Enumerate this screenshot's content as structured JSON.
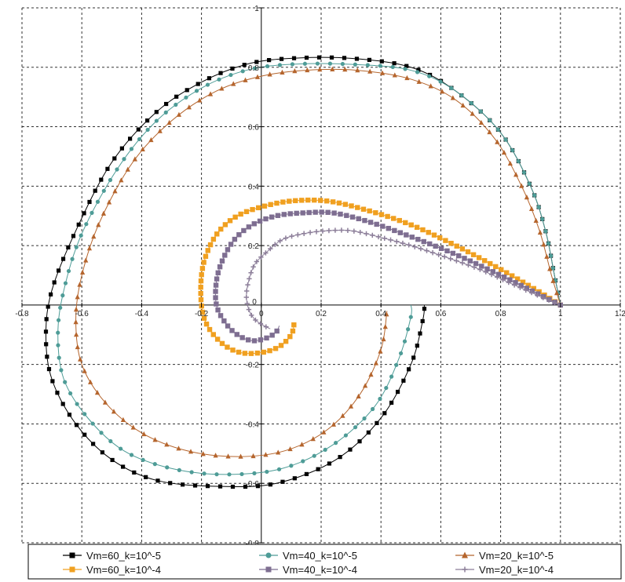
{
  "chart_data": {
    "type": "line",
    "title": "",
    "xlabel": "",
    "ylabel": "",
    "xlim": [
      -0.8,
      1.2
    ],
    "ylim": [
      -0.8,
      1.0
    ],
    "x_ticks": [
      -0.8,
      -0.6,
      -0.4,
      -0.2,
      0,
      0.2,
      0.4,
      0.6,
      0.8,
      1,
      1.2
    ],
    "x_tick_labels": [
      "-0.8",
      "-0.6",
      "-0.4",
      "-0.2",
      "0",
      "0.2",
      "0.4",
      "0.6",
      "0.8",
      "1",
      "1.2"
    ],
    "y_ticks": [
      1,
      0.8,
      0.6,
      0.4,
      0.2,
      0,
      -0.2,
      -0.4,
      -0.6,
      -0.8
    ],
    "y_tick_labels": [
      "1",
      "0.8",
      "0.6",
      "0.4",
      "0.2",
      "0",
      "-0.2",
      "-0.4",
      "-0.6",
      "-0.8"
    ],
    "grid": true,
    "legend_position": "bottom",
    "series": [
      {
        "name": "Vm=60_k=10^-5",
        "color": "#000000",
        "marker": "square",
        "x": [
          1.0,
          0.98,
          0.95,
          0.9,
          0.8,
          0.65,
          0.5,
          0.3,
          0.1,
          -0.05,
          -0.2,
          -0.35,
          -0.5,
          -0.62,
          -0.7,
          -0.72,
          -0.7,
          -0.62,
          -0.5,
          -0.35,
          -0.15,
          0.05,
          0.25,
          0.4,
          0.5,
          0.54,
          0.545
        ],
        "y": [
          0.0,
          0.1,
          0.25,
          0.4,
          0.58,
          0.72,
          0.8,
          0.83,
          0.83,
          0.81,
          0.75,
          0.65,
          0.48,
          0.25,
          0.05,
          -0.1,
          -0.25,
          -0.4,
          -0.52,
          -0.59,
          -0.61,
          -0.6,
          -0.52,
          -0.38,
          -0.2,
          -0.05,
          0.0
        ]
      },
      {
        "name": "Vm=40_k=10^-5",
        "color": "#4e9c97",
        "marker": "circle",
        "x": [
          1.0,
          0.98,
          0.95,
          0.9,
          0.8,
          0.65,
          0.5,
          0.3,
          0.1,
          -0.05,
          -0.2,
          -0.35,
          -0.48,
          -0.6,
          -0.66,
          -0.68,
          -0.66,
          -0.58,
          -0.46,
          -0.3,
          -0.12,
          0.07,
          0.24,
          0.38,
          0.46,
          0.5,
          0.5
        ],
        "y": [
          0.0,
          0.1,
          0.25,
          0.4,
          0.58,
          0.72,
          0.79,
          0.81,
          0.81,
          0.79,
          0.73,
          0.62,
          0.46,
          0.24,
          0.05,
          -0.1,
          -0.25,
          -0.38,
          -0.49,
          -0.55,
          -0.57,
          -0.55,
          -0.47,
          -0.34,
          -0.18,
          -0.04,
          0.0
        ]
      },
      {
        "name": "Vm=20_k=10^-5",
        "color": "#b5652d",
        "marker": "triangle",
        "x": [
          1.0,
          0.97,
          0.93,
          0.87,
          0.78,
          0.65,
          0.5,
          0.32,
          0.15,
          0.0,
          -0.15,
          -0.3,
          -0.43,
          -0.54,
          -0.6,
          -0.62,
          -0.6,
          -0.52,
          -0.4,
          -0.25,
          -0.08,
          0.08,
          0.22,
          0.33,
          0.4,
          0.42
        ],
        "y": [
          0.0,
          0.1,
          0.25,
          0.4,
          0.56,
          0.69,
          0.76,
          0.79,
          0.79,
          0.77,
          0.72,
          0.62,
          0.48,
          0.28,
          0.1,
          -0.05,
          -0.2,
          -0.33,
          -0.43,
          -0.49,
          -0.51,
          -0.49,
          -0.42,
          -0.3,
          -0.15,
          -0.02
        ]
      },
      {
        "name": "Vm=60_k=10^-4",
        "color": "#f0a020",
        "marker": "square",
        "x": [
          1.0,
          0.92,
          0.8,
          0.65,
          0.5,
          0.35,
          0.22,
          0.1,
          0.0,
          -0.08,
          -0.14,
          -0.18,
          -0.2,
          -0.2,
          -0.18,
          -0.13,
          -0.07,
          0.0,
          0.06,
          0.1,
          0.11
        ],
        "y": [
          0.0,
          0.05,
          0.12,
          0.2,
          0.27,
          0.32,
          0.35,
          0.35,
          0.33,
          0.3,
          0.25,
          0.18,
          0.1,
          0.0,
          -0.07,
          -0.13,
          -0.16,
          -0.16,
          -0.14,
          -0.1,
          -0.06
        ]
      },
      {
        "name": "Vm=40_k=10^-4",
        "color": "#7e6e91",
        "marker": "square",
        "x": [
          1.0,
          0.92,
          0.8,
          0.65,
          0.5,
          0.36,
          0.24,
          0.14,
          0.05,
          -0.03,
          -0.09,
          -0.13,
          -0.15,
          -0.15,
          -0.12,
          -0.08,
          -0.03,
          0.02,
          0.05,
          0.06
        ],
        "y": [
          0.0,
          0.04,
          0.1,
          0.17,
          0.23,
          0.28,
          0.31,
          0.31,
          0.3,
          0.27,
          0.22,
          0.15,
          0.08,
          0.0,
          -0.06,
          -0.1,
          -0.12,
          -0.11,
          -0.09,
          -0.07
        ]
      },
      {
        "name": "Vm=20_k=10^-4",
        "color": "#8c7e99",
        "marker": "plus",
        "x": [
          1.0,
          0.93,
          0.84,
          0.73,
          0.62,
          0.5,
          0.39,
          0.3,
          0.22,
          0.14,
          0.07,
          0.02,
          -0.02,
          -0.04,
          -0.05,
          -0.04,
          -0.02,
          0.01,
          0.03
        ],
        "y": [
          0.0,
          0.03,
          0.07,
          0.12,
          0.16,
          0.2,
          0.23,
          0.25,
          0.25,
          0.24,
          0.22,
          0.18,
          0.14,
          0.09,
          0.03,
          -0.02,
          -0.05,
          -0.07,
          -0.08
        ]
      }
    ]
  }
}
